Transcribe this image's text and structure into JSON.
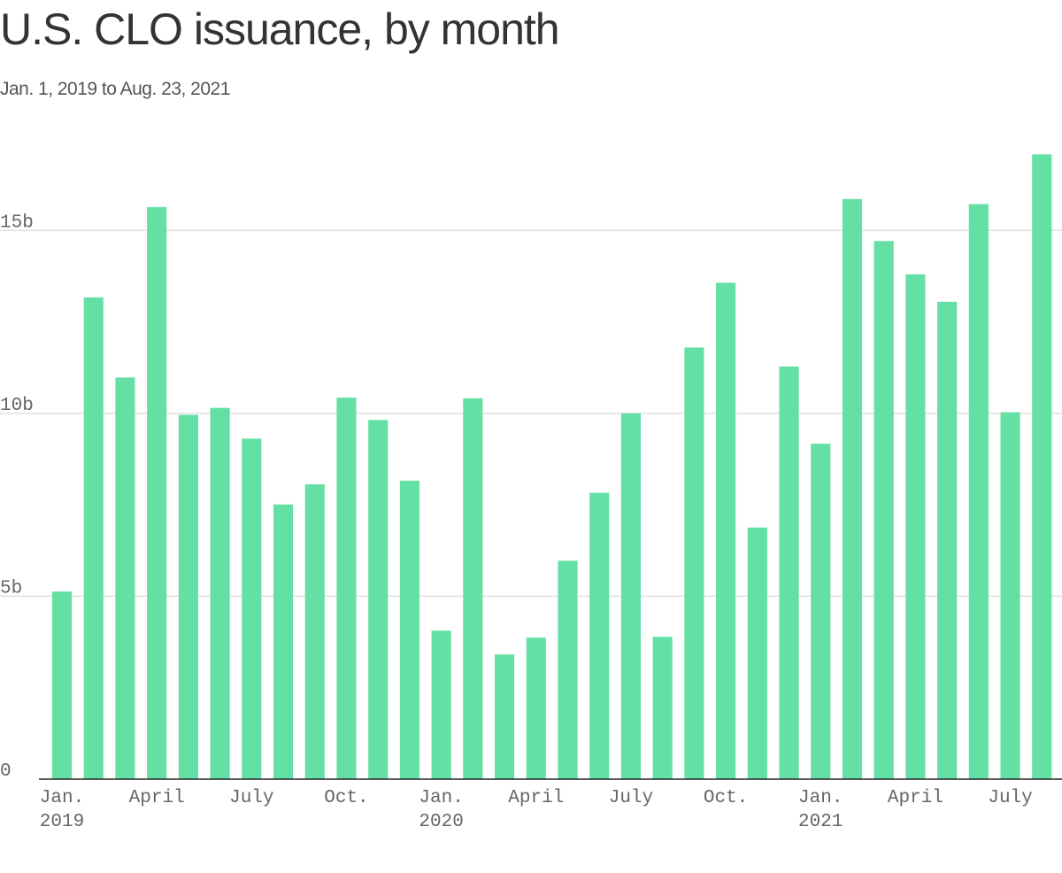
{
  "chart_data": {
    "type": "bar",
    "title": "U.S. CLO issuance, by month",
    "subtitle": "Jan. 1, 2019 to Aug. 23, 2021",
    "xlabel": "",
    "ylabel": "",
    "ylim": [
      0,
      17.5
    ],
    "y_ticks": [
      {
        "value": 0,
        "label": "0"
      },
      {
        "value": 5,
        "label": "5b"
      },
      {
        "value": 10,
        "label": "10b"
      },
      {
        "value": 15,
        "label": "15b"
      }
    ],
    "x_tick_labels": [
      {
        "index": 0,
        "line1": "Jan.",
        "line2": "2019"
      },
      {
        "index": 3,
        "line1": "April",
        "line2": ""
      },
      {
        "index": 6,
        "line1": "July",
        "line2": ""
      },
      {
        "index": 9,
        "line1": "Oct.",
        "line2": ""
      },
      {
        "index": 12,
        "line1": "Jan.",
        "line2": "2020"
      },
      {
        "index": 15,
        "line1": "April",
        "line2": ""
      },
      {
        "index": 18,
        "line1": "July",
        "line2": ""
      },
      {
        "index": 21,
        "line1": "Oct.",
        "line2": ""
      },
      {
        "index": 24,
        "line1": "Jan.",
        "line2": "2021"
      },
      {
        "index": 27,
        "line1": "April",
        "line2": ""
      },
      {
        "index": 30,
        "line1": "July",
        "line2": ""
      }
    ],
    "categories": [
      "2019-01",
      "2019-02",
      "2019-03",
      "2019-04",
      "2019-05",
      "2019-06",
      "2019-07",
      "2019-08",
      "2019-09",
      "2019-10",
      "2019-11",
      "2019-12",
      "2020-01",
      "2020-02",
      "2020-03",
      "2020-04",
      "2020-05",
      "2020-06",
      "2020-07",
      "2020-08",
      "2020-09",
      "2020-10",
      "2020-11",
      "2020-12",
      "2021-01",
      "2021-02",
      "2021-03",
      "2021-04",
      "2021-05",
      "2021-06",
      "2021-07",
      "2021-08"
    ],
    "values": [
      5.13,
      13.17,
      10.98,
      15.64,
      9.96,
      10.15,
      9.31,
      7.51,
      8.06,
      10.43,
      9.82,
      8.16,
      4.06,
      10.41,
      3.41,
      3.87,
      5.97,
      7.83,
      10.0,
      3.89,
      11.8,
      13.57,
      6.88,
      11.28,
      9.17,
      15.86,
      14.71,
      13.8,
      13.05,
      15.72,
      10.03,
      17.08
    ],
    "color": "#65e0a4",
    "grid": true,
    "legend": "none"
  }
}
